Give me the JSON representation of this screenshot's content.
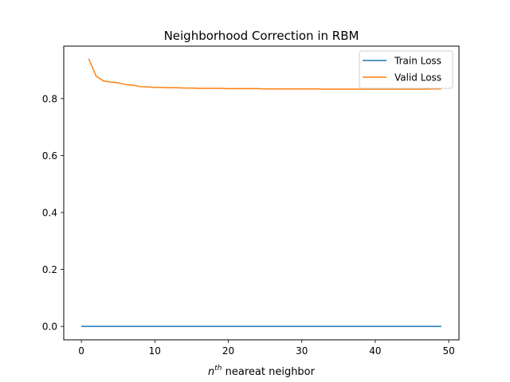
{
  "chart_data": {
    "type": "line",
    "title": "Neighborhood Correction in RBM",
    "xlabel_base": "n",
    "xlabel_sup": "th",
    "xlabel_rest": " neareat neighbor",
    "ylabel": "",
    "xlim": [
      -2.4,
      51.4
    ],
    "ylim": [
      -0.047,
      0.984
    ],
    "xticks": [
      0,
      10,
      20,
      30,
      40,
      50
    ],
    "yticks": [
      0.0,
      0.2,
      0.4,
      0.6,
      0.8
    ],
    "ytick_labels": [
      "0.0",
      "0.2",
      "0.4",
      "0.6",
      "0.8"
    ],
    "xtick_labels": [
      "0",
      "10",
      "20",
      "30",
      "40",
      "50"
    ],
    "grid": false,
    "legend_position": "upper right",
    "series": [
      {
        "name": "Train Loss",
        "color": "#1f77b4",
        "x": [
          0,
          49
        ],
        "y": [
          0.0,
          0.0
        ]
      },
      {
        "name": "Valid Loss",
        "color": "#ff7f0e",
        "x": [
          1,
          2,
          3,
          4,
          5,
          6,
          7,
          8,
          9,
          10,
          11,
          12,
          13,
          14,
          15,
          16,
          17,
          18,
          19,
          20,
          21,
          22,
          23,
          24,
          25,
          26,
          27,
          28,
          29,
          30,
          31,
          32,
          33,
          34,
          35,
          36,
          37,
          38,
          39,
          40,
          41,
          42,
          43,
          44,
          45,
          46,
          47,
          48,
          49
        ],
        "y": [
          0.94,
          0.879,
          0.862,
          0.858,
          0.855,
          0.849,
          0.847,
          0.842,
          0.841,
          0.839,
          0.839,
          0.838,
          0.838,
          0.837,
          0.837,
          0.836,
          0.836,
          0.836,
          0.836,
          0.835,
          0.835,
          0.835,
          0.835,
          0.835,
          0.834,
          0.834,
          0.834,
          0.834,
          0.834,
          0.834,
          0.834,
          0.834,
          0.833,
          0.833,
          0.833,
          0.833,
          0.833,
          0.833,
          0.833,
          0.833,
          0.833,
          0.833,
          0.833,
          0.833,
          0.833,
          0.833,
          0.833,
          0.834,
          0.834
        ]
      }
    ]
  }
}
